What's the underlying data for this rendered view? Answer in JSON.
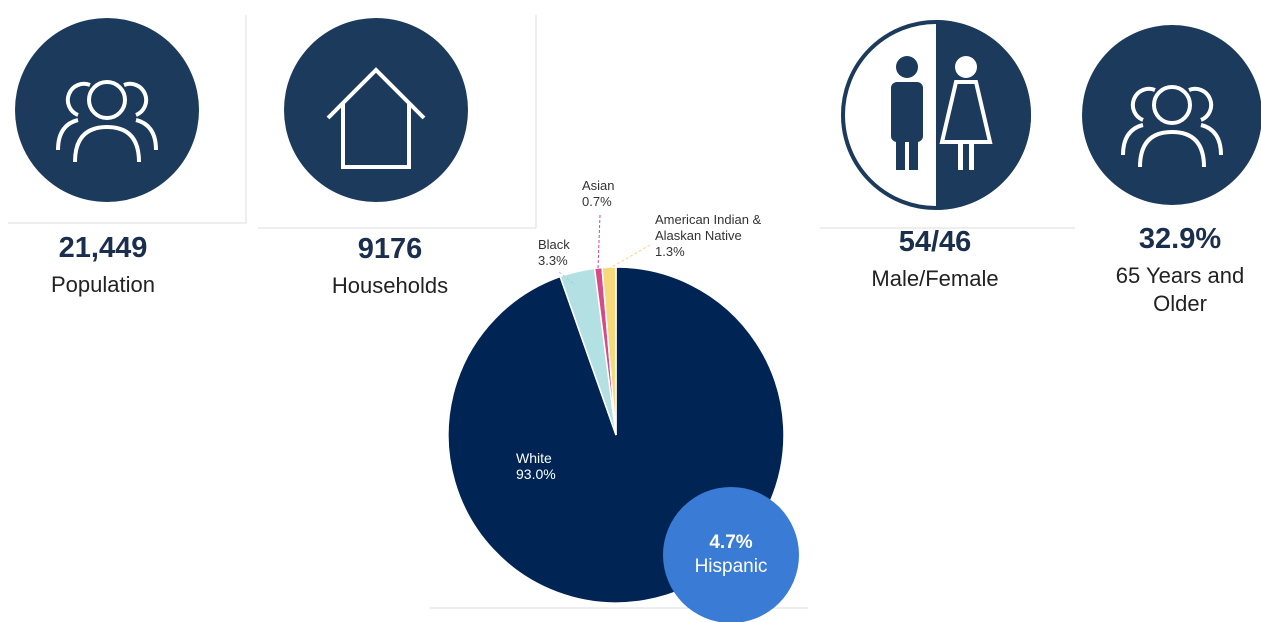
{
  "stats": [
    {
      "value": "21,449",
      "label": "Population"
    },
    {
      "value": "9176",
      "label": "Households"
    },
    {
      "value": "54/46",
      "label": "Male/Female"
    },
    {
      "value": "32.9%",
      "label": "65 Years and Older"
    }
  ],
  "chart_data": {
    "type": "pie",
    "categories": [
      "White",
      "Black",
      "Asian",
      "American Indian & Alaskan Native"
    ],
    "values": [
      93.0,
      3.3,
      0.7,
      1.3
    ],
    "value_labels": [
      "93.0%",
      "3.3%",
      "0.7%",
      "1.3%"
    ],
    "colors": [
      "#002554",
      "#b3e0e3",
      "#d64a8a",
      "#f5d97a"
    ],
    "callout": {
      "value": "4.7%",
      "label": "Hispanic",
      "color": "#3a7bd5"
    }
  }
}
